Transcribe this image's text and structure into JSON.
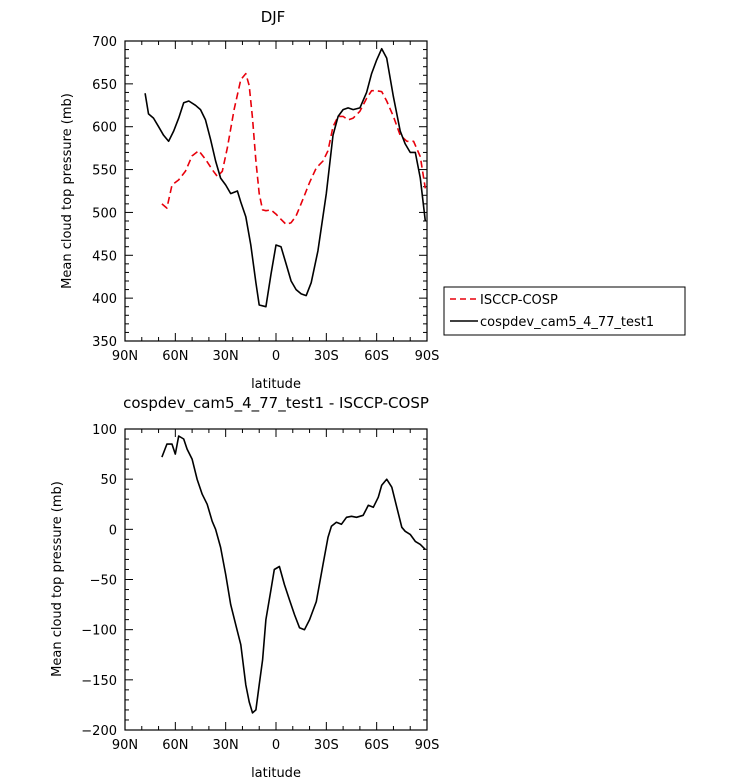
{
  "chart_data": [
    {
      "type": "line",
      "title": "DJF",
      "xlabel": "latitude",
      "ylabel": "Mean cloud top pressure (mb)",
      "xlim": [
        -90,
        90
      ],
      "ylim": [
        350,
        700
      ],
      "x_ticks": [
        -90,
        -60,
        -30,
        0,
        30,
        60,
        90
      ],
      "x_tick_labels": [
        "90N",
        "60N",
        "30N",
        "0",
        "30S",
        "60S",
        "90S"
      ],
      "y_ticks": [
        350,
        400,
        450,
        500,
        550,
        600,
        650,
        700
      ],
      "y_tick_labels": [
        "350",
        "400",
        "450",
        "500",
        "550",
        "600",
        "650",
        "700"
      ],
      "legend_placement": "outside-right",
      "series": [
        {
          "name": "ISCCP-COSP",
          "color": "#e8000b",
          "dash": "dashed",
          "x": [
            -68,
            -65,
            -62,
            -58,
            -54,
            -50,
            -46,
            -42,
            -38,
            -35,
            -32,
            -29,
            -25,
            -21,
            -18,
            -16,
            -14,
            -12,
            -10,
            -8,
            -6,
            -3,
            0,
            3,
            6,
            9,
            12,
            16,
            20,
            24,
            28,
            31,
            34,
            37,
            40,
            43,
            46,
            50,
            54,
            57,
            60,
            63,
            66,
            70,
            74,
            78,
            82,
            86,
            89
          ],
          "y": [
            510,
            505,
            532,
            538,
            548,
            566,
            572,
            562,
            550,
            542,
            548,
            575,
            620,
            655,
            662,
            648,
            610,
            560,
            522,
            503,
            502,
            503,
            498,
            492,
            486,
            488,
            496,
            515,
            535,
            552,
            560,
            572,
            600,
            612,
            612,
            608,
            610,
            618,
            633,
            642,
            642,
            641,
            630,
            612,
            590,
            583,
            583,
            565,
            528
          ]
        },
        {
          "name": "cospdev_cam5_4_77_test1",
          "color": "#000000",
          "dash": "solid",
          "x": [
            -78,
            -76,
            -73,
            -70,
            -67,
            -64,
            -61,
            -58,
            -55,
            -52,
            -48,
            -45,
            -42,
            -39,
            -36,
            -33,
            -30,
            -27,
            -23,
            -21,
            -18,
            -15,
            -12,
            -10,
            -6,
            -3,
            0,
            3,
            6,
            9,
            12,
            15,
            18,
            21,
            25,
            30,
            34,
            37,
            40,
            43,
            46,
            50,
            54,
            57,
            60,
            63,
            66,
            70,
            74,
            77,
            80,
            83,
            86,
            89
          ],
          "y": [
            639,
            615,
            610,
            600,
            590,
            583,
            595,
            610,
            628,
            630,
            625,
            620,
            608,
            585,
            560,
            540,
            532,
            522,
            525,
            512,
            495,
            462,
            418,
            392,
            390,
            428,
            462,
            460,
            440,
            420,
            410,
            405,
            403,
            418,
            455,
            522,
            590,
            612,
            620,
            622,
            620,
            622,
            640,
            662,
            678,
            691,
            680,
            635,
            595,
            580,
            570,
            570,
            540,
            490
          ]
        }
      ]
    },
    {
      "type": "line",
      "title": "cospdev_cam5_4_77_test1 - ISCCP-COSP",
      "xlabel": "latitude",
      "ylabel": "Mean cloud top pressure (mb)",
      "xlim": [
        -90,
        90
      ],
      "ylim": [
        -200,
        100
      ],
      "x_ticks": [
        -90,
        -60,
        -30,
        0,
        30,
        60,
        90
      ],
      "x_tick_labels": [
        "90N",
        "60N",
        "30N",
        "0",
        "30S",
        "60S",
        "90S"
      ],
      "y_ticks": [
        -200,
        -150,
        -100,
        -50,
        0,
        50,
        100
      ],
      "y_tick_labels": [
        "−200",
        "−150",
        "−100",
        "−50",
        "0",
        "50",
        "100"
      ],
      "series": [
        {
          "color": "#000000",
          "dash": "solid",
          "x": [
            -68,
            -65,
            -62,
            -60,
            -58,
            -55,
            -53,
            -50,
            -47,
            -44,
            -41,
            -38,
            -36,
            -33,
            -30,
            -27,
            -24,
            -21,
            -18,
            -16,
            -14,
            -12,
            -10,
            -8,
            -6,
            -3,
            -1,
            2,
            5,
            8,
            11,
            14,
            17,
            20,
            24,
            28,
            31,
            33,
            36,
            39,
            42,
            45,
            48,
            52,
            55,
            58,
            61,
            63,
            66,
            69,
            72,
            75,
            77,
            80,
            83,
            86,
            89
          ],
          "y": [
            72,
            85,
            85,
            75,
            93,
            90,
            80,
            70,
            50,
            35,
            25,
            8,
            0,
            -18,
            -45,
            -75,
            -95,
            -115,
            -155,
            -172,
            -183,
            -180,
            -155,
            -130,
            -90,
            -60,
            -40,
            -37,
            -55,
            -70,
            -85,
            -98,
            -100,
            -90,
            -72,
            -35,
            -8,
            3,
            7,
            5,
            12,
            13,
            12,
            14,
            24,
            22,
            32,
            44,
            50,
            42,
            22,
            2,
            -2,
            -5,
            -12,
            -15,
            -20
          ]
        }
      ]
    }
  ]
}
